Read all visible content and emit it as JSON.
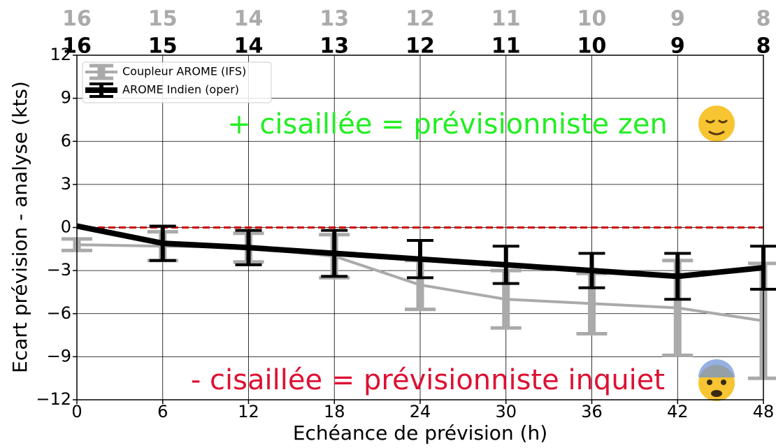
{
  "chart_data": {
    "type": "errorbar-line",
    "x_label": "Echéance de prévision (h)",
    "y_label": "Ecart prévision - analyse (kts)",
    "x": [
      0,
      6,
      12,
      18,
      24,
      30,
      36,
      42,
      48
    ],
    "xlim": [
      0,
      48
    ],
    "xticks": [
      0,
      6,
      12,
      18,
      24,
      30,
      36,
      42,
      48
    ],
    "ylim": [
      -12,
      12
    ],
    "yticks": [
      {
        "value": -12,
        "label": "−12"
      },
      {
        "value": -9,
        "label": "−9"
      },
      {
        "value": -6,
        "label": "−6"
      },
      {
        "value": -3,
        "label": "−3"
      },
      0,
      3,
      6,
      9,
      12
    ],
    "grid": true,
    "reference_line": {
      "value": 0,
      "color": "#cc0000"
    },
    "legend_position": "upper left",
    "series": [
      {
        "name": "Coupleur AROME (IFS)",
        "color": "#aaaaaa",
        "values": [
          -1.2,
          -1.3,
          -1.4,
          -2.0,
          -4.0,
          -5.0,
          -5.3,
          -5.6,
          -6.5
        ],
        "errors": [
          0.4,
          1.0,
          1.0,
          1.5,
          1.7,
          2.0,
          2.1,
          3.3,
          4.0
        ],
        "top_labels": [
          "16",
          "15",
          "14",
          "13",
          "12",
          "11",
          "10",
          "9",
          "8"
        ]
      },
      {
        "name": "AROME Indien (oper)",
        "color": "#000000",
        "values": [
          0.1,
          -1.1,
          -1.4,
          -1.8,
          -2.2,
          -2.6,
          -3.0,
          -3.4,
          -2.8
        ],
        "errors": [
          null,
          1.2,
          1.2,
          1.6,
          1.3,
          1.3,
          1.2,
          1.6,
          1.5
        ],
        "top_labels": [
          "16",
          "15",
          "14",
          "13",
          "12",
          "11",
          "10",
          "9",
          "8"
        ]
      }
    ],
    "annotations": [
      {
        "text": "+ cisaillée = prévisionniste zen",
        "color": "#22ee22"
      },
      {
        "text": "- cisaillée = prévisionniste inquiet",
        "color": "#dd1133"
      }
    ]
  }
}
